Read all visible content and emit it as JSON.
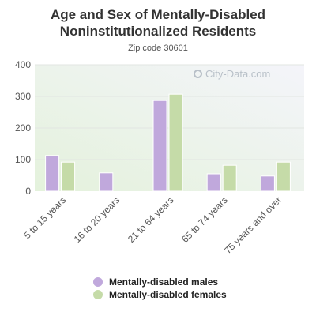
{
  "chart_data": {
    "type": "bar",
    "title_lines": [
      "Age and Sex of Mentally-Disabled",
      "Noninstitutionalized Residents"
    ],
    "subtitle": "Zip code 30601",
    "categories": [
      "5 to 15 years",
      "16 to 20 years",
      "21 to 64 years",
      "65 to 74 years",
      "75 years and over"
    ],
    "series": [
      {
        "name": "Mentally-disabled males",
        "color": "#c0a8dc",
        "values": [
          113,
          58,
          287,
          55,
          48
        ]
      },
      {
        "name": "Mentally-disabled females",
        "color": "#c5dba8",
        "values": [
          92,
          null,
          307,
          82,
          92
        ]
      }
    ],
    "ylim": [
      0,
      400
    ],
    "yticks": [
      "0",
      "100",
      "200",
      "300",
      "400"
    ],
    "grid": true,
    "legend_position": "bottom"
  },
  "watermark": {
    "text": "City-Data.com",
    "icon": "magnifier-icon"
  }
}
